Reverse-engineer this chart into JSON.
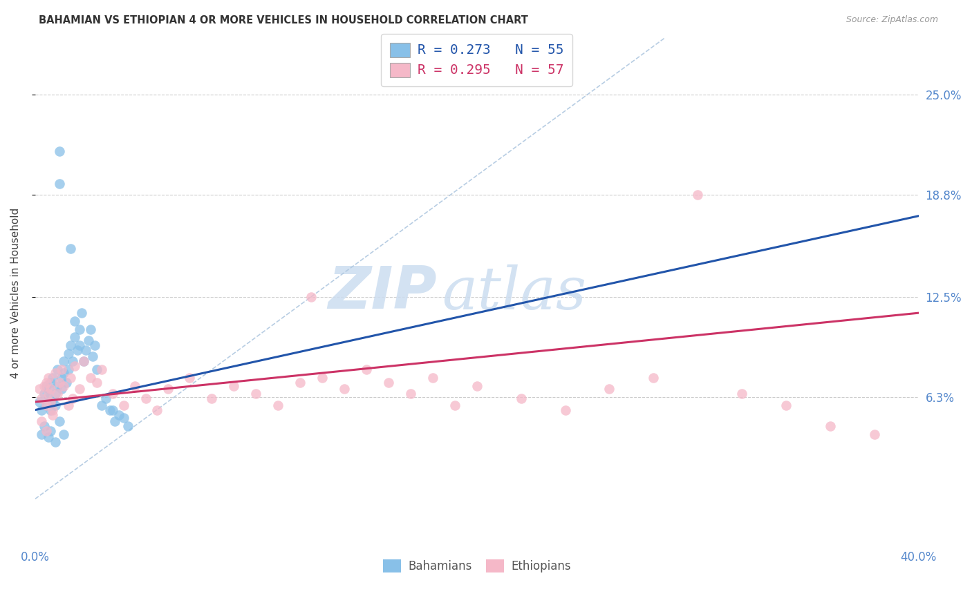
{
  "title": "BAHAMIAN VS ETHIOPIAN 4 OR MORE VEHICLES IN HOUSEHOLD CORRELATION CHART",
  "source": "Source: ZipAtlas.com",
  "ylabel": "4 or more Vehicles in Household",
  "y_tick_labels": [
    "25.0%",
    "18.8%",
    "12.5%",
    "6.3%"
  ],
  "y_tick_vals": [
    0.25,
    0.188,
    0.125,
    0.063
  ],
  "xlim": [
    0.0,
    0.4
  ],
  "ylim_low": -0.03,
  "ylim_high": 0.285,
  "legend_line1": "R = 0.273   N = 55",
  "legend_line2": "R = 0.295   N = 57",
  "legend_label_blue": "Bahamians",
  "legend_label_pink": "Ethiopians",
  "blue_scatter_color": "#88c0e8",
  "pink_scatter_color": "#f5b8c8",
  "blue_line_color": "#2255aa",
  "pink_line_color": "#cc3366",
  "diag_line_color": "#b0c8e0",
  "background_color": "#ffffff",
  "grid_color": "#cccccc",
  "tick_color": "#5588cc",
  "title_color": "#333333",
  "source_color": "#999999",
  "watermark_color": "#ddeeff",
  "bah_x": [
    0.002,
    0.003,
    0.004,
    0.005,
    0.005,
    0.006,
    0.006,
    0.007,
    0.007,
    0.008,
    0.008,
    0.009,
    0.009,
    0.01,
    0.01,
    0.011,
    0.011,
    0.012,
    0.012,
    0.013,
    0.013,
    0.014,
    0.015,
    0.015,
    0.016,
    0.016,
    0.017,
    0.018,
    0.018,
    0.019,
    0.02,
    0.02,
    0.021,
    0.022,
    0.023,
    0.024,
    0.025,
    0.026,
    0.027,
    0.028,
    0.03,
    0.032,
    0.034,
    0.036,
    0.038,
    0.04,
    0.042,
    0.003,
    0.004,
    0.006,
    0.007,
    0.009,
    0.011,
    0.013,
    0.035
  ],
  "bah_y": [
    0.06,
    0.055,
    0.065,
    0.07,
    0.058,
    0.062,
    0.068,
    0.055,
    0.072,
    0.06,
    0.075,
    0.058,
    0.065,
    0.08,
    0.07,
    0.215,
    0.195,
    0.075,
    0.068,
    0.085,
    0.078,
    0.072,
    0.09,
    0.08,
    0.155,
    0.095,
    0.085,
    0.11,
    0.1,
    0.092,
    0.105,
    0.095,
    0.115,
    0.085,
    0.092,
    0.098,
    0.105,
    0.088,
    0.095,
    0.08,
    0.058,
    0.062,
    0.055,
    0.048,
    0.052,
    0.05,
    0.045,
    0.04,
    0.045,
    0.038,
    0.042,
    0.035,
    0.048,
    0.04,
    0.055
  ],
  "eth_x": [
    0.002,
    0.003,
    0.004,
    0.005,
    0.005,
    0.006,
    0.006,
    0.007,
    0.007,
    0.008,
    0.009,
    0.01,
    0.011,
    0.012,
    0.013,
    0.015,
    0.016,
    0.017,
    0.018,
    0.02,
    0.022,
    0.025,
    0.028,
    0.03,
    0.035,
    0.04,
    0.045,
    0.05,
    0.055,
    0.06,
    0.07,
    0.08,
    0.09,
    0.1,
    0.11,
    0.12,
    0.13,
    0.14,
    0.15,
    0.16,
    0.17,
    0.18,
    0.19,
    0.2,
    0.22,
    0.24,
    0.26,
    0.28,
    0.3,
    0.32,
    0.34,
    0.36,
    0.38,
    0.003,
    0.005,
    0.008,
    0.125
  ],
  "eth_y": [
    0.068,
    0.062,
    0.07,
    0.058,
    0.072,
    0.065,
    0.075,
    0.06,
    0.068,
    0.055,
    0.078,
    0.065,
    0.072,
    0.08,
    0.07,
    0.058,
    0.075,
    0.062,
    0.082,
    0.068,
    0.085,
    0.075,
    0.072,
    0.08,
    0.065,
    0.058,
    0.07,
    0.062,
    0.055,
    0.068,
    0.075,
    0.062,
    0.07,
    0.065,
    0.058,
    0.072,
    0.075,
    0.068,
    0.08,
    0.072,
    0.065,
    0.075,
    0.058,
    0.07,
    0.062,
    0.055,
    0.068,
    0.075,
    0.188,
    0.065,
    0.058,
    0.045,
    0.04,
    0.048,
    0.042,
    0.052,
    0.125
  ]
}
